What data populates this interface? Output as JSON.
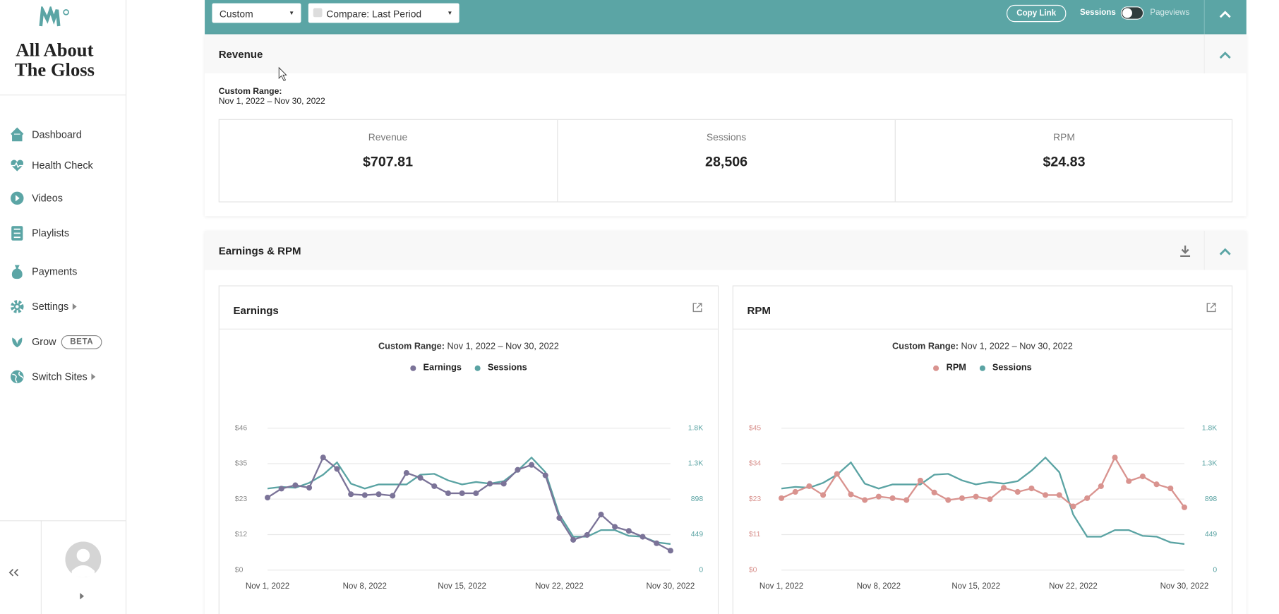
{
  "sidebar": {
    "brand": "All About The Gloss",
    "nav": [
      "Dashboard",
      "Health Check",
      "Videos",
      "Playlists",
      "Payments",
      "Settings",
      "Grow",
      "Switch Sites"
    ],
    "beta": "BETA"
  },
  "toolbar": {
    "range": "Custom",
    "compare": "Compare: Last Period",
    "copy_link": "Copy Link",
    "sessions": "Sessions",
    "pageviews": "Pageviews"
  },
  "revenue": {
    "title": "Revenue",
    "range_label": "Custom Range:",
    "range": "Nov 1, 2022 – Nov 30, 2022",
    "metrics": [
      {
        "label": "Revenue",
        "value": "$707.81"
      },
      {
        "label": "Sessions",
        "value": "28,506"
      },
      {
        "label": "RPM",
        "value": "$24.83"
      }
    ]
  },
  "earnings_rpm": {
    "title": "Earnings & RPM"
  },
  "chart_data": [
    {
      "type": "line",
      "title": "Earnings",
      "subtitle_label": "Custom Range:",
      "subtitle": "Nov 1, 2022 – Nov 30, 2022",
      "categories": [
        "Nov 1, 2022",
        null,
        null,
        null,
        null,
        null,
        null,
        "Nov 8, 2022",
        null,
        null,
        null,
        null,
        null,
        null,
        "Nov 15, 2022",
        null,
        null,
        null,
        null,
        null,
        null,
        "Nov 22, 2022",
        null,
        null,
        null,
        null,
        null,
        null,
        null,
        "Nov 30, 2022"
      ],
      "series": [
        {
          "name": "Earnings",
          "color": "#7b7398",
          "marker": true,
          "values": [
            23.5,
            26.4,
            27.5,
            26.7,
            36.5,
            32.8,
            24.6,
            24.3,
            24.6,
            24.1,
            31.5,
            29.9,
            27.2,
            24.9,
            24.9,
            24.9,
            28.0,
            28.0,
            32.5,
            34.1,
            30.7,
            16.9,
            9.8,
            11.4,
            18.0,
            14.0,
            12.7,
            10.8,
            8.7,
            6.3
          ]
        },
        {
          "name": "Sessions",
          "color": "#5aa3a3",
          "marker": false,
          "axis": "y2",
          "values": [
            1032,
            1053,
            1042,
            1104,
            1207,
            1362,
            1094,
            1032,
            1084,
            1084,
            1084,
            1207,
            1218,
            1135,
            1084,
            1115,
            1094,
            1125,
            1259,
            1424,
            1238,
            702,
            423,
            423,
            506,
            506,
            433,
            423,
            351,
            330
          ]
        }
      ],
      "ylim": [
        0,
        46
      ],
      "yticks": [
        {
          "value": 0,
          "label": "$0"
        },
        {
          "value": 11.5,
          "label": "$12"
        },
        {
          "value": 23,
          "label": "$23"
        },
        {
          "value": 34.5,
          "label": "$35"
        },
        {
          "value": 46,
          "label": "$46"
        }
      ],
      "y2lim": [
        0,
        1796
      ],
      "y2ticks": [
        0,
        449,
        898,
        {
          "value": 1347,
          "label": "1.3K"
        },
        {
          "value": 1796,
          "label": "1.8K"
        }
      ],
      "y_axis_color": "#8a8a8a",
      "y2_axis_color": "#5aa3a3",
      "grid": true
    },
    {
      "type": "line",
      "title": "RPM",
      "subtitle_label": "Custom Range:",
      "subtitle": "Nov 1, 2022 – Nov 30, 2022",
      "categories": [
        "Nov 1, 2022",
        null,
        null,
        null,
        null,
        null,
        null,
        "Nov 8, 2022",
        null,
        null,
        null,
        null,
        null,
        null,
        "Nov 15, 2022",
        null,
        null,
        null,
        null,
        null,
        null,
        "Nov 22, 2022",
        null,
        null,
        null,
        null,
        null,
        null,
        null,
        "Nov 30, 2022"
      ],
      "series": [
        {
          "name": "RPM",
          "color": "#d9938f",
          "marker": true,
          "values": [
            22.8,
            24.8,
            26.6,
            23.8,
            30.5,
            24.0,
            22.2,
            23.3,
            22.8,
            22.2,
            28.4,
            24.6,
            22.2,
            22.8,
            23.3,
            22.5,
            26.1,
            24.8,
            25.9,
            23.8,
            23.8,
            20.2,
            22.8,
            26.6,
            35.7,
            28.2,
            29.7,
            27.2,
            25.9,
            19.9
          ]
        },
        {
          "name": "Sessions",
          "color": "#5aa3a3",
          "marker": false,
          "axis": "y2",
          "values": [
            1032,
            1053,
            1042,
            1104,
            1207,
            1362,
            1094,
            1032,
            1084,
            1084,
            1084,
            1207,
            1218,
            1135,
            1084,
            1115,
            1094,
            1125,
            1259,
            1424,
            1238,
            702,
            423,
            423,
            506,
            506,
            433,
            423,
            351,
            330
          ]
        }
      ],
      "ylim": [
        0,
        45
      ],
      "yticks": [
        {
          "value": 0,
          "label": "$0"
        },
        {
          "value": 11.25,
          "label": "$11"
        },
        {
          "value": 22.5,
          "label": "$23"
        },
        {
          "value": 33.75,
          "label": "$34"
        },
        {
          "value": 45,
          "label": "$45"
        }
      ],
      "y2lim": [
        0,
        1796
      ],
      "y2ticks": [
        0,
        449,
        898,
        {
          "value": 1347,
          "label": "1.3K"
        },
        {
          "value": 1796,
          "label": "1.8K"
        }
      ],
      "y_axis_color": "#d9938f",
      "y2_axis_color": "#5aa3a3",
      "grid": true
    }
  ]
}
